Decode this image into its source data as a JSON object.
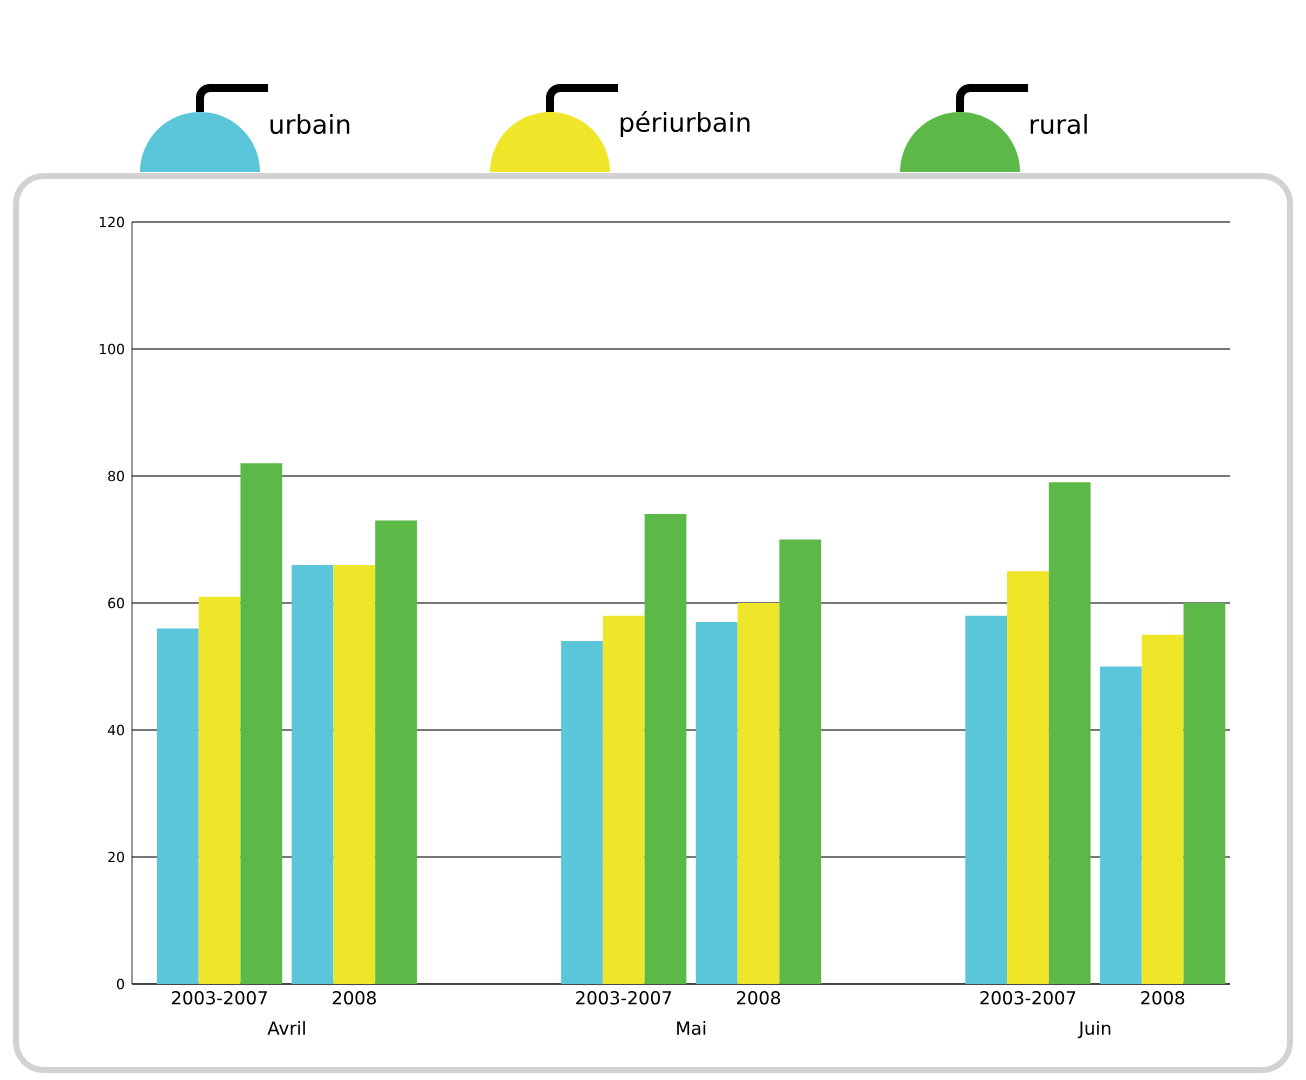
{
  "chart_data": {
    "type": "bar",
    "categories": [
      "2003-2007",
      "2008",
      null,
      "2003-2007",
      "2008",
      null,
      "2003-2007",
      "2008"
    ],
    "series": [
      {
        "name": "urbain",
        "color": "#5bc6da",
        "values": [
          56,
          66,
          null,
          54,
          57,
          null,
          58,
          50
        ]
      },
      {
        "name": "périurbain",
        "color": "#efe62a",
        "values": [
          61,
          66,
          null,
          58,
          60,
          null,
          65,
          55
        ]
      },
      {
        "name": "rural",
        "color": "#5cb947",
        "values": [
          82,
          73,
          null,
          74,
          70,
          null,
          79,
          60
        ]
      }
    ],
    "ylim": [
      0,
      120
    ],
    "yticks": [
      0,
      20,
      40,
      60,
      80,
      100,
      120
    ],
    "grid": "y",
    "legend": "top",
    "annotations": [
      "Avril",
      "Mai",
      "Juin"
    ]
  }
}
